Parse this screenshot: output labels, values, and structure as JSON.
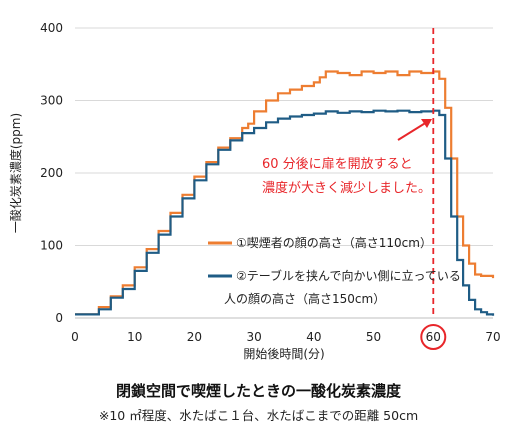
{
  "caption": {
    "title": "閉鎖空間で喫煙したときの一酸化炭素濃度",
    "subtitle": "※10 ㎡程度、水たばこ１台、水たばこまでの距離 50cm"
  },
  "annotation": {
    "line1": "60 分後に扉を開放すると",
    "line2": "濃度が大きく減少しました。",
    "x": 60
  },
  "colors": {
    "orange": "#ED7D31",
    "blue": "#1F5C85",
    "red": "#E8262A",
    "grid": "#D9D9D9"
  },
  "chart_data": {
    "type": "line",
    "xlabel": "開始後時間(分)",
    "ylabel": "一酸化炭素濃度(ppm)",
    "xlim": [
      0,
      70
    ],
    "ylim": [
      0,
      400
    ],
    "xticks": [
      0,
      10,
      20,
      30,
      40,
      50,
      60,
      70
    ],
    "yticks": [
      0,
      100,
      200,
      300,
      400
    ],
    "grid": "horizontal",
    "legend_position": "inside-lower-center",
    "series": [
      {
        "name": "①喫煙者の顔の高さ（高さ110cm）",
        "legend_line2": "",
        "color_key": "orange",
        "x": [
          0,
          2,
          3,
          4,
          6,
          8,
          10,
          12,
          14,
          16,
          18,
          20,
          22,
          24,
          26,
          28,
          29,
          30,
          32,
          34,
          36,
          38,
          40,
          41,
          42,
          44,
          46,
          48,
          50,
          52,
          54,
          56,
          58,
          60,
          61,
          62,
          63,
          64,
          65,
          66,
          67,
          68,
          69,
          70
        ],
        "y": [
          5,
          5,
          5,
          15,
          30,
          45,
          70,
          95,
          120,
          145,
          170,
          195,
          215,
          235,
          248,
          262,
          268,
          285,
          300,
          310,
          315,
          320,
          325,
          332,
          340,
          338,
          335,
          340,
          338,
          340,
          335,
          340,
          338,
          340,
          330,
          290,
          220,
          140,
          100,
          75,
          60,
          58,
          58,
          55
        ]
      },
      {
        "name": "②テーブルを挟んで向かい側に立っている",
        "legend_line2": "人の顔の高さ（高さ150cm）",
        "color_key": "blue",
        "x": [
          0,
          2,
          3,
          4,
          6,
          8,
          10,
          12,
          14,
          16,
          18,
          20,
          22,
          24,
          26,
          28,
          30,
          32,
          34,
          36,
          38,
          40,
          42,
          44,
          46,
          48,
          50,
          52,
          54,
          56,
          58,
          60,
          61,
          62,
          63,
          64,
          65,
          66,
          67,
          68,
          69,
          70
        ],
        "y": [
          5,
          5,
          5,
          12,
          28,
          40,
          65,
          90,
          115,
          140,
          165,
          190,
          212,
          232,
          245,
          255,
          262,
          270,
          275,
          278,
          280,
          282,
          285,
          283,
          285,
          284,
          286,
          285,
          286,
          284,
          285,
          286,
          280,
          220,
          140,
          80,
          45,
          25,
          12,
          8,
          5,
          3
        ]
      }
    ]
  }
}
